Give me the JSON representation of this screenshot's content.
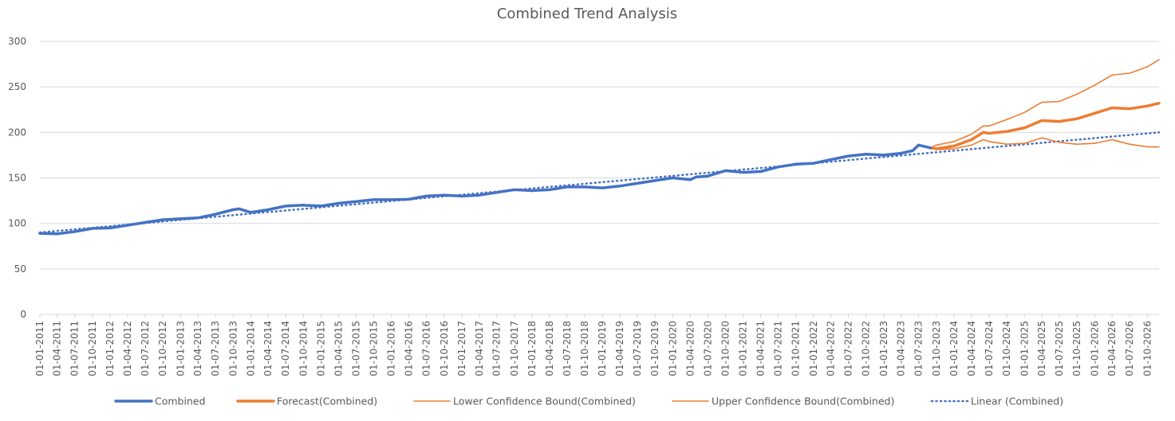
{
  "chart_data": {
    "type": "line",
    "title": "Combined Trend Analysis",
    "xlabel": "",
    "ylabel": "",
    "ylim": [
      0,
      300
    ],
    "yticks": [
      0,
      50,
      100,
      150,
      200,
      250,
      300
    ],
    "x_range": [
      "01-01-2011",
      "01-12-2026"
    ],
    "grid": "horizontal",
    "legend_position": "bottom",
    "x_tick_labels": [
      "01-01-2011",
      "01-04-2011",
      "01-07-2011",
      "01-10-2011",
      "01-01-2012",
      "01-04-2012",
      "01-07-2012",
      "01-10-2012",
      "01-01-2013",
      "01-04-2013",
      "01-07-2013",
      "01-10-2013",
      "01-01-2014",
      "01-04-2014",
      "01-07-2014",
      "01-10-2014",
      "01-01-2015",
      "01-04-2015",
      "01-07-2015",
      "01-10-2015",
      "01-01-2016",
      "01-04-2016",
      "01-07-2016",
      "01-10-2016",
      "01-01-2017",
      "01-04-2017",
      "01-07-2017",
      "01-10-2017",
      "01-01-2018",
      "01-04-2018",
      "01-07-2018",
      "01-10-2018",
      "01-01-2019",
      "01-04-2019",
      "01-07-2019",
      "01-10-2019",
      "01-01-2020",
      "01-04-2020",
      "01-07-2020",
      "01-10-2020",
      "01-01-2021",
      "01-04-2021",
      "01-07-2021",
      "01-10-2021",
      "01-01-2022",
      "01-04-2022",
      "01-07-2022",
      "01-10-2022",
      "01-01-2023",
      "01-04-2023",
      "01-07-2023",
      "01-10-2023",
      "01-01-2024",
      "01-04-2024",
      "01-07-2024",
      "01-10-2024",
      "01-01-2025",
      "01-04-2025",
      "01-07-2025",
      "01-10-2025",
      "01-01-2026",
      "01-04-2026",
      "01-07-2026",
      "01-10-2026"
    ],
    "series": [
      {
        "name": "Combined",
        "color": "#4472C4",
        "style": "thick",
        "points": [
          [
            "01-01-2011",
            89
          ],
          [
            "01-04-2011",
            88.5
          ],
          [
            "01-07-2011",
            91
          ],
          [
            "01-10-2011",
            94.5
          ],
          [
            "01-01-2012",
            95
          ],
          [
            "01-04-2012",
            98
          ],
          [
            "01-07-2012",
            101
          ],
          [
            "01-10-2012",
            104
          ],
          [
            "01-01-2013",
            105
          ],
          [
            "01-04-2013",
            106
          ],
          [
            "01-07-2013",
            110
          ],
          [
            "01-10-2013",
            115
          ],
          [
            "01-11-2013",
            116
          ],
          [
            "01-01-2014",
            112
          ],
          [
            "01-04-2014",
            115
          ],
          [
            "01-07-2014",
            119
          ],
          [
            "01-10-2014",
            120
          ],
          [
            "01-01-2015",
            119
          ],
          [
            "01-04-2015",
            122
          ],
          [
            "01-07-2015",
            124
          ],
          [
            "01-10-2015",
            126
          ],
          [
            "01-01-2016",
            126
          ],
          [
            "01-04-2016",
            126.5
          ],
          [
            "01-07-2016",
            130
          ],
          [
            "01-10-2016",
            131
          ],
          [
            "01-01-2017",
            130
          ],
          [
            "01-04-2017",
            131
          ],
          [
            "01-07-2017",
            134
          ],
          [
            "01-10-2017",
            137
          ],
          [
            "01-01-2018",
            136
          ],
          [
            "01-04-2018",
            137
          ],
          [
            "01-07-2018",
            140
          ],
          [
            "01-10-2018",
            140
          ],
          [
            "01-01-2019",
            139
          ],
          [
            "01-04-2019",
            141
          ],
          [
            "01-07-2019",
            144
          ],
          [
            "01-10-2019",
            147
          ],
          [
            "01-01-2020",
            150
          ],
          [
            "01-04-2020",
            148
          ],
          [
            "01-05-2020",
            151
          ],
          [
            "01-07-2020",
            152
          ],
          [
            "01-10-2020",
            158
          ],
          [
            "01-01-2021",
            156
          ],
          [
            "01-04-2021",
            157
          ],
          [
            "01-07-2021",
            162
          ],
          [
            "01-10-2021",
            165
          ],
          [
            "01-01-2022",
            166
          ],
          [
            "01-04-2022",
            170
          ],
          [
            "01-07-2022",
            174
          ],
          [
            "01-10-2022",
            176
          ],
          [
            "01-01-2023",
            175
          ],
          [
            "01-04-2023",
            177
          ],
          [
            "01-06-2023",
            180
          ],
          [
            "01-07-2023",
            186
          ],
          [
            "01-09-2023",
            183
          ]
        ]
      },
      {
        "name": "Forecast(Combined)",
        "color": "#ED7D31",
        "style": "thick",
        "points": [
          [
            "01-09-2023",
            183
          ],
          [
            "01-10-2023",
            182
          ],
          [
            "01-01-2024",
            185
          ],
          [
            "01-04-2024",
            192
          ],
          [
            "01-06-2024",
            200
          ],
          [
            "01-07-2024",
            199
          ],
          [
            "01-10-2024",
            201
          ],
          [
            "01-01-2025",
            205
          ],
          [
            "01-04-2025",
            213
          ],
          [
            "01-07-2025",
            212
          ],
          [
            "01-10-2025",
            215
          ],
          [
            "01-01-2026",
            221
          ],
          [
            "01-04-2026",
            227
          ],
          [
            "01-07-2026",
            226
          ],
          [
            "01-10-2026",
            229
          ],
          [
            "01-12-2026",
            232
          ]
        ]
      },
      {
        "name": "Lower Confidence Bound(Combined)",
        "color": "#ED7D31",
        "style": "thin",
        "points": [
          [
            "01-09-2023",
            183
          ],
          [
            "01-10-2023",
            181
          ],
          [
            "01-01-2024",
            182
          ],
          [
            "01-04-2024",
            186
          ],
          [
            "01-06-2024",
            192
          ],
          [
            "01-07-2024",
            190
          ],
          [
            "01-10-2024",
            187
          ],
          [
            "01-01-2025",
            188
          ],
          [
            "01-04-2025",
            194
          ],
          [
            "01-07-2025",
            189
          ],
          [
            "01-10-2025",
            187
          ],
          [
            "01-01-2026",
            188
          ],
          [
            "01-04-2026",
            192
          ],
          [
            "01-07-2026",
            187
          ],
          [
            "01-10-2026",
            184
          ],
          [
            "01-12-2026",
            184
          ]
        ]
      },
      {
        "name": "Upper Confidence Bound(Combined)",
        "color": "#ED7D31",
        "style": "thin",
        "points": [
          [
            "01-09-2023",
            183
          ],
          [
            "01-10-2023",
            186
          ],
          [
            "01-01-2024",
            190
          ],
          [
            "01-04-2024",
            198
          ],
          [
            "01-06-2024",
            207
          ],
          [
            "01-07-2024",
            207
          ],
          [
            "01-10-2024",
            214
          ],
          [
            "01-01-2025",
            222
          ],
          [
            "01-04-2025",
            233
          ],
          [
            "01-07-2025",
            234
          ],
          [
            "01-10-2025",
            242
          ],
          [
            "01-01-2026",
            252
          ],
          [
            "01-04-2026",
            263
          ],
          [
            "01-07-2026",
            265
          ],
          [
            "01-10-2026",
            272
          ],
          [
            "01-12-2026",
            280
          ]
        ]
      },
      {
        "name": "Linear (Combined)",
        "color": "#4472C4",
        "style": "dotted",
        "points": [
          [
            "01-01-2011",
            90
          ],
          [
            "01-12-2026",
            200
          ]
        ]
      }
    ]
  }
}
